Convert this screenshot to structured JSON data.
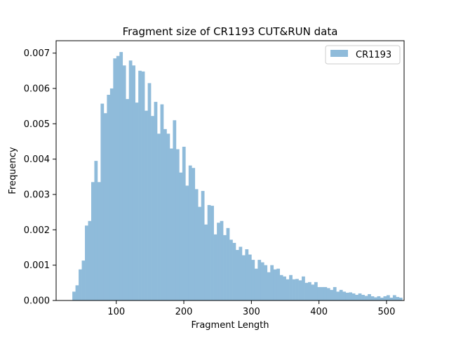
{
  "chart_data": {
    "type": "bar",
    "title": "Fragment size of CR1193 CUT&RUN data",
    "xlabel": "Fragment Length",
    "ylabel": "Frequency",
    "xlim": [
      11,
      526
    ],
    "ylim": [
      0,
      0.00735
    ],
    "xticks": [
      100,
      200,
      300,
      400,
      500
    ],
    "xtick_labels": [
      "100",
      "200",
      "300",
      "400",
      "500"
    ],
    "yticks": [
      0.0,
      0.001,
      0.002,
      0.003,
      0.004,
      0.005,
      0.006,
      0.007
    ],
    "ytick_labels": [
      "0.000",
      "0.001",
      "0.002",
      "0.003",
      "0.004",
      "0.005",
      "0.006",
      "0.007"
    ],
    "grid": false,
    "legend_position": "top-right",
    "series": [
      {
        "name": "CR1193",
        "color": "#8fbbda",
        "bin_start": 35,
        "bin_width": 4.65,
        "values": [
          0.00025,
          0.00043,
          0.00088,
          0.00113,
          0.00212,
          0.00225,
          0.00335,
          0.00395,
          0.00335,
          0.00557,
          0.0053,
          0.00582,
          0.006,
          0.00685,
          0.00692,
          0.00703,
          0.00665,
          0.0057,
          0.00679,
          0.00665,
          0.0056,
          0.0065,
          0.00648,
          0.00537,
          0.00615,
          0.00522,
          0.00562,
          0.00472,
          0.00555,
          0.00485,
          0.00472,
          0.0043,
          0.0051,
          0.00428,
          0.00362,
          0.00435,
          0.00325,
          0.00382,
          0.00375,
          0.00315,
          0.00265,
          0.0031,
          0.00215,
          0.0027,
          0.00268,
          0.00187,
          0.0022,
          0.00225,
          0.00185,
          0.00205,
          0.00172,
          0.00163,
          0.00143,
          0.00152,
          0.00128,
          0.00145,
          0.0013,
          0.00115,
          0.0009,
          0.00115,
          0.00108,
          0.001,
          0.0008,
          0.001,
          0.00088,
          0.0009,
          0.00072,
          0.00068,
          0.0006,
          0.00072,
          0.0006,
          0.00061,
          0.00057,
          0.00068,
          0.0005,
          0.00052,
          0.00045,
          0.00052,
          0.00038,
          0.00038,
          0.00038,
          0.00035,
          0.0003,
          0.00038,
          0.00025,
          0.0003,
          0.00025,
          0.00022,
          0.00023,
          0.0002,
          0.00016,
          0.0002,
          0.00016,
          0.00013,
          0.00018,
          0.00012,
          9e-05,
          0.00012,
          8e-05,
          0.00012,
          0.00015,
          8e-05,
          0.00015,
          0.0001,
          8e-05
        ]
      }
    ]
  }
}
